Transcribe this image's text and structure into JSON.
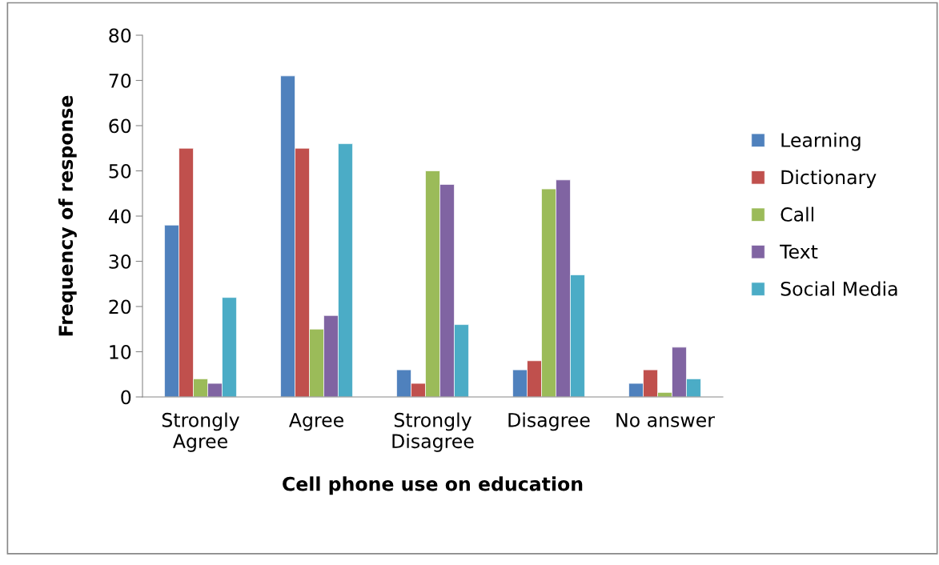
{
  "chart_data": {
    "type": "bar",
    "xlabel": "Cell phone use on education",
    "ylabel": "Frequency of response",
    "categories": [
      "Strongly\nAgree",
      "Agree",
      "Strongly\nDisagree",
      "Disagree",
      "No answer"
    ],
    "series": [
      {
        "name": "Learning",
        "color": "#4f81bd",
        "values": [
          38,
          71,
          6,
          6,
          3
        ]
      },
      {
        "name": "Dictionary",
        "color": "#c0504d",
        "values": [
          55,
          55,
          3,
          8,
          6
        ]
      },
      {
        "name": "Call",
        "color": "#9bbb59",
        "values": [
          4,
          15,
          50,
          46,
          1
        ]
      },
      {
        "name": "Text",
        "color": "#8064a2",
        "values": [
          3,
          18,
          47,
          48,
          11
        ]
      },
      {
        "name": "Social Media",
        "color": "#4bacc6",
        "values": [
          22,
          56,
          16,
          27,
          4
        ]
      }
    ],
    "ylim": [
      0,
      80
    ],
    "yticks": [
      0,
      10,
      20,
      30,
      40,
      50,
      60,
      70,
      80
    ],
    "grid": false,
    "legend": "right"
  }
}
